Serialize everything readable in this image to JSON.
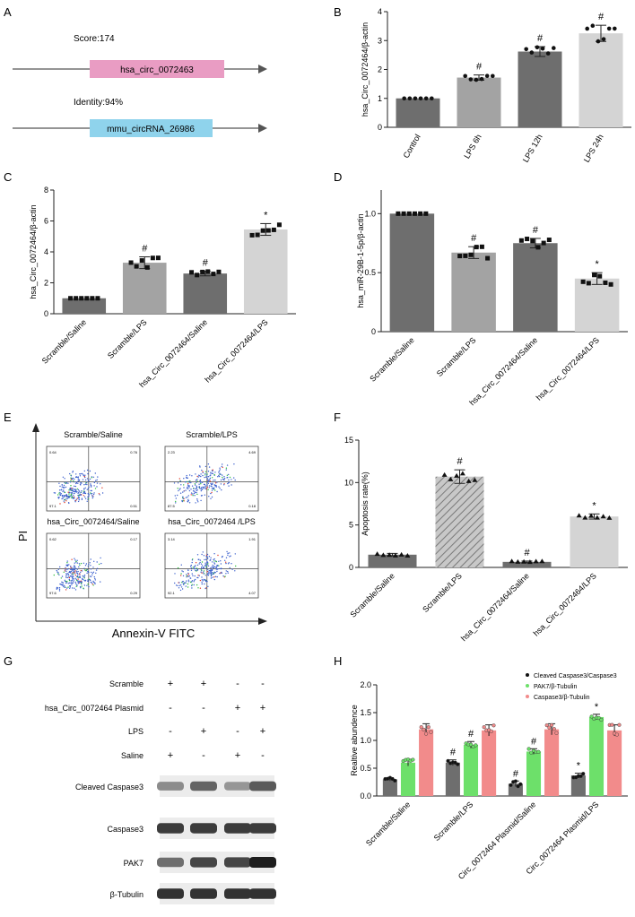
{
  "panel_letters": {
    "A": "A",
    "B": "B",
    "C": "C",
    "D": "D",
    "E": "E",
    "F": "F",
    "G": "G",
    "H": "H"
  },
  "colors": {
    "dark": "#6e6e6e",
    "mid": "#a3a3a3",
    "light": "#d4d4d4",
    "pink": "#e99cc3",
    "blue": "#8fd3ec",
    "green": "#6de06a",
    "red": "#f28b8b",
    "flow_dot": "#3a5fcd"
  },
  "panel_a": {
    "score_label": "Score:174",
    "gene1": "hsa_circ_0072463",
    "identity_label": "Identity:94%",
    "gene2": "mmu_circRNA_26986"
  },
  "chart_data": [
    {
      "id": "B",
      "type": "bar",
      "title": "",
      "ylabel": "hsa_Circ_0072464/β-actin",
      "xlabel": "",
      "categories": [
        "Control",
        "LPS 6h",
        "LPS 12h",
        "LPS 24h"
      ],
      "values": [
        1.0,
        1.72,
        2.62,
        3.25
      ],
      "errors": [
        0.0,
        0.09,
        0.17,
        0.28
      ],
      "ylim": [
        0,
        4
      ],
      "yticks": [
        0,
        1,
        2,
        3,
        4
      ],
      "annotations": [
        "",
        "#",
        "#",
        "#"
      ]
    },
    {
      "id": "C",
      "type": "bar",
      "title": "",
      "ylabel": "hsa_Circ_0072464/β-actin",
      "xlabel": "",
      "categories": [
        "Scramble/Saline",
        "Scramble/LPS",
        "hsa_Circ_0072464/Saline",
        "hsa_Circ_0072464/LPS"
      ],
      "values": [
        1.0,
        3.3,
        2.6,
        5.45
      ],
      "errors": [
        0.0,
        0.38,
        0.15,
        0.38
      ],
      "ylim": [
        0,
        8
      ],
      "yticks": [
        0,
        2,
        4,
        6,
        8
      ],
      "annotations": [
        "",
        "#",
        "#",
        "*"
      ]
    },
    {
      "id": "D",
      "type": "bar",
      "title": "",
      "ylabel": "hsa_miR-29B-1-5p/β-actin",
      "xlabel": "",
      "categories": [
        "Scramble/Saline",
        "Scramble/LPS",
        "hsa_Circ_0072464/Saline",
        "hsa_Circ_0072464/LPS"
      ],
      "values": [
        1.0,
        0.67,
        0.75,
        0.45
      ],
      "errors": [
        0.0,
        0.05,
        0.04,
        0.05
      ],
      "ylim": [
        0,
        1.2
      ],
      "yticks": [
        0,
        0.5,
        1.0
      ],
      "ytick_labels": [
        "0",
        "0.5",
        "1.0"
      ],
      "annotations": [
        "",
        "#",
        "#",
        "*"
      ]
    },
    {
      "id": "F",
      "type": "bar",
      "title": "",
      "ylabel": "Apoptosis rate(%)",
      "xlabel": "",
      "categories": [
        "Scramble/Saline",
        "Scramble/LPS",
        "hsa_Circ_0072464/Saline",
        "hsa_Circ_0072464/LPS"
      ],
      "values": [
        1.5,
        10.7,
        0.65,
        6.0
      ],
      "errors": [
        0.15,
        0.8,
        0.1,
        0.3
      ],
      "ylim": [
        0,
        15
      ],
      "yticks": [
        0,
        5,
        10,
        15
      ],
      "annotations": [
        "",
        "#",
        "#",
        "*"
      ]
    },
    {
      "id": "H",
      "type": "bar",
      "title": "",
      "ylabel": "Realtive abundence",
      "xlabel": "",
      "categories": [
        "Scramble/Saline",
        "Scramble/LPS",
        "Circ_0072464 Plasmid/Saline",
        "Circ_0072464 Plasmid/LPS"
      ],
      "series": [
        {
          "name": "Cleaved Caspase3/Caspase3",
          "values": [
            0.3,
            0.6,
            0.22,
            0.37
          ],
          "errors": [
            0.03,
            0.05,
            0.05,
            0.04
          ],
          "annotations": [
            "",
            "#",
            "#",
            "*"
          ]
        },
        {
          "name": "PAK7/β-Tubulin",
          "values": [
            0.6,
            0.92,
            0.8,
            1.42
          ],
          "errors": [
            0.06,
            0.06,
            0.05,
            0.05
          ],
          "annotations": [
            "",
            "#",
            "#",
            "*"
          ]
        },
        {
          "name": "Caspase3/β-Tubulin",
          "values": [
            1.2,
            1.18,
            1.2,
            1.18
          ],
          "errors": [
            0.1,
            0.1,
            0.1,
            0.1
          ],
          "annotations": [
            "",
            "",
            "",
            ""
          ]
        }
      ],
      "ylim": [
        0,
        2.0
      ],
      "yticks": [
        0,
        0.5,
        1.0,
        1.5,
        2.0
      ],
      "ytick_labels": [
        "0.0",
        "0.5",
        "1.0",
        "1.5",
        "2.0"
      ],
      "legend": "top-right"
    }
  ],
  "panel_e": {
    "ylabel": "PI",
    "xlabel": "Annexin-V FITC",
    "plots": [
      {
        "title": "Scramble/Saline",
        "q1": "0.64",
        "q2": "0.76",
        "q3": "0.51",
        "q4": "97.1"
      },
      {
        "title": "Scramble/LPS",
        "q1": "2.23",
        "q2": "4.69",
        "q3": "0.18",
        "q4": "87.5"
      },
      {
        "title": "hsa_Circ_0072464/Saline",
        "q1": "0.62",
        "q2": "0.17",
        "q3": "0.29",
        "q4": "97.6"
      },
      {
        "title": "hsa_Circ_0072464 /LPS",
        "q1": "3.14",
        "q2": "1.91",
        "q3": "4.07",
        "q4": "92.1"
      }
    ]
  },
  "panel_g": {
    "rows": [
      {
        "label": "Scramble",
        "marks": [
          "+",
          "+",
          "-",
          "-"
        ]
      },
      {
        "label": "hsa_Circ_0072464 Plasmid",
        "marks": [
          "-",
          "-",
          "+",
          "+"
        ]
      },
      {
        "label": "LPS",
        "marks": [
          "-",
          "+",
          "-",
          "+"
        ]
      },
      {
        "label": "Saline",
        "marks": [
          "+",
          "-",
          "+",
          "-"
        ]
      }
    ],
    "blots": [
      {
        "label": "Cleaved Caspase3",
        "intensity": [
          0.45,
          0.65,
          0.4,
          0.7
        ]
      },
      {
        "label": "Caspase3",
        "intensity": [
          0.85,
          0.85,
          0.85,
          0.85
        ]
      },
      {
        "label": "PAK7",
        "intensity": [
          0.6,
          0.8,
          0.8,
          1.0
        ]
      },
      {
        "label": "β-Tubulin",
        "intensity": [
          0.9,
          0.9,
          0.9,
          0.9
        ]
      }
    ]
  }
}
